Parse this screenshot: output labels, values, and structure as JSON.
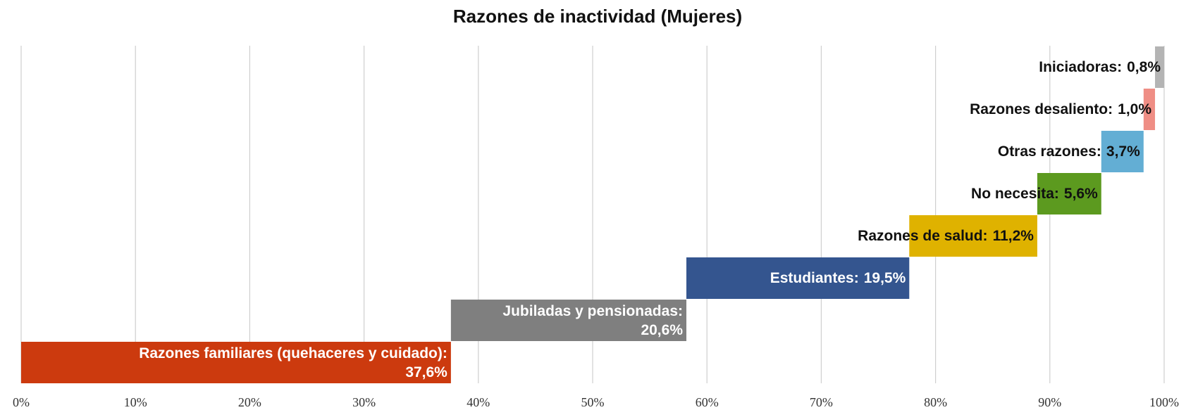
{
  "chart_data": {
    "type": "waterfall-bar",
    "title": "Razones de inactividad (Mujeres)",
    "categories": [
      "Razones familiares (quehaceres y cuidado):",
      "Jubiladas y pensionadas:",
      "Estudiantes:",
      "Razones de salud:",
      "No necesita:",
      "Otras razones:",
      "Razones desaliento:",
      "Iniciadoras:"
    ],
    "values": [
      37.6,
      20.6,
      19.5,
      11.2,
      5.6,
      3.7,
      1.0,
      0.8
    ],
    "value_labels": [
      "37,6%",
      "20,6%",
      "19,5%",
      "11,2%",
      "5,6%",
      "3,7%",
      "1,0%",
      "0,8%"
    ],
    "colors": [
      "#cc3a0e",
      "#7f7f7f",
      "#34558f",
      "#dfb200",
      "#5c9a1f",
      "#63aed4",
      "#ef8e85",
      "#b4b4b4"
    ],
    "xlim": [
      0,
      100
    ],
    "xticks": [
      {
        "value": 0,
        "label": "0%"
      },
      {
        "value": 10,
        "label": "10%"
      },
      {
        "value": 20,
        "label": "20%"
      },
      {
        "value": 30,
        "label": "30%"
      },
      {
        "value": 40,
        "label": "40%"
      },
      {
        "value": 50,
        "label": "50%"
      },
      {
        "value": 60,
        "label": "60%"
      },
      {
        "value": 70,
        "label": "70%"
      },
      {
        "value": 80,
        "label": "80%"
      },
      {
        "value": 90,
        "label": "90%"
      },
      {
        "value": 100,
        "label": "100%"
      }
    ],
    "grid": true
  }
}
